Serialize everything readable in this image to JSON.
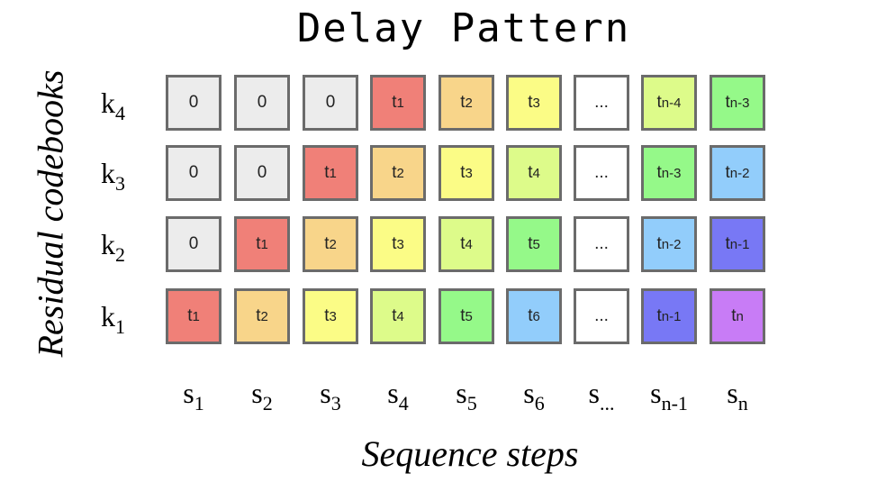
{
  "title": "Delay Pattern",
  "ylabel": "Residual codebooks",
  "xlabel": "Sequence steps",
  "colors": {
    "zero": "#ececec",
    "t1": "#f08078",
    "t2": "#f8d58a",
    "t3": "#fbfc86",
    "t4": "#ddfb8a",
    "t5": "#95f989",
    "t6": "#92cdfb",
    "tn3": "#95f989",
    "tn2": "#92cdfb",
    "tn1": "#7878f5",
    "tn": "#c87cf6",
    "dots": "#ffffff"
  },
  "rows": [
    {
      "label": "k",
      "sub": "4",
      "cells": [
        {
          "t": "0",
          "s": "",
          "c": "zero"
        },
        {
          "t": "0",
          "s": "",
          "c": "zero"
        },
        {
          "t": "0",
          "s": "",
          "c": "zero"
        },
        {
          "t": "t",
          "s": "1",
          "c": "t1"
        },
        {
          "t": "t",
          "s": "2",
          "c": "t2"
        },
        {
          "t": "t",
          "s": "3",
          "c": "t3"
        },
        {
          "t": "...",
          "s": "",
          "c": "dots"
        },
        {
          "t": "t",
          "s": "n-4",
          "c": "t4"
        },
        {
          "t": "t",
          "s": "n-3",
          "c": "tn3"
        }
      ]
    },
    {
      "label": "k",
      "sub": "3",
      "cells": [
        {
          "t": "0",
          "s": "",
          "c": "zero"
        },
        {
          "t": "0",
          "s": "",
          "c": "zero"
        },
        {
          "t": "t",
          "s": "1",
          "c": "t1"
        },
        {
          "t": "t",
          "s": "2",
          "c": "t2"
        },
        {
          "t": "t",
          "s": "3",
          "c": "t3"
        },
        {
          "t": "t",
          "s": "4",
          "c": "t4"
        },
        {
          "t": "...",
          "s": "",
          "c": "dots"
        },
        {
          "t": "t",
          "s": "n-3",
          "c": "tn3"
        },
        {
          "t": "t",
          "s": "n-2",
          "c": "tn2"
        }
      ]
    },
    {
      "label": "k",
      "sub": "2",
      "cells": [
        {
          "t": "0",
          "s": "",
          "c": "zero"
        },
        {
          "t": "t",
          "s": "1",
          "c": "t1"
        },
        {
          "t": "t",
          "s": "2",
          "c": "t2"
        },
        {
          "t": "t",
          "s": "3",
          "c": "t3"
        },
        {
          "t": "t",
          "s": "4",
          "c": "t4"
        },
        {
          "t": "t",
          "s": "5",
          "c": "t5"
        },
        {
          "t": "...",
          "s": "",
          "c": "dots"
        },
        {
          "t": "t",
          "s": "n-2",
          "c": "tn2"
        },
        {
          "t": "t",
          "s": "n-1",
          "c": "tn1"
        }
      ]
    },
    {
      "label": "k",
      "sub": "1",
      "cells": [
        {
          "t": "t",
          "s": "1",
          "c": "t1"
        },
        {
          "t": "t",
          "s": "2",
          "c": "t2"
        },
        {
          "t": "t",
          "s": "3",
          "c": "t3"
        },
        {
          "t": "t",
          "s": "4",
          "c": "t4"
        },
        {
          "t": "t",
          "s": "5",
          "c": "t5"
        },
        {
          "t": "t",
          "s": "6",
          "c": "t6"
        },
        {
          "t": "...",
          "s": "",
          "c": "dots"
        },
        {
          "t": "t",
          "s": "n-1",
          "c": "tn1"
        },
        {
          "t": "t",
          "s": "n",
          "c": "tn"
        }
      ]
    }
  ],
  "columns": [
    {
      "t": "s",
      "s": "1"
    },
    {
      "t": "s",
      "s": "2"
    },
    {
      "t": "s",
      "s": "3"
    },
    {
      "t": "s",
      "s": "4"
    },
    {
      "t": "s",
      "s": "5"
    },
    {
      "t": "s",
      "s": "6"
    },
    {
      "t": "s",
      "s": "..."
    },
    {
      "t": "s",
      "s": "n-1"
    },
    {
      "t": "s",
      "s": "n"
    }
  ]
}
